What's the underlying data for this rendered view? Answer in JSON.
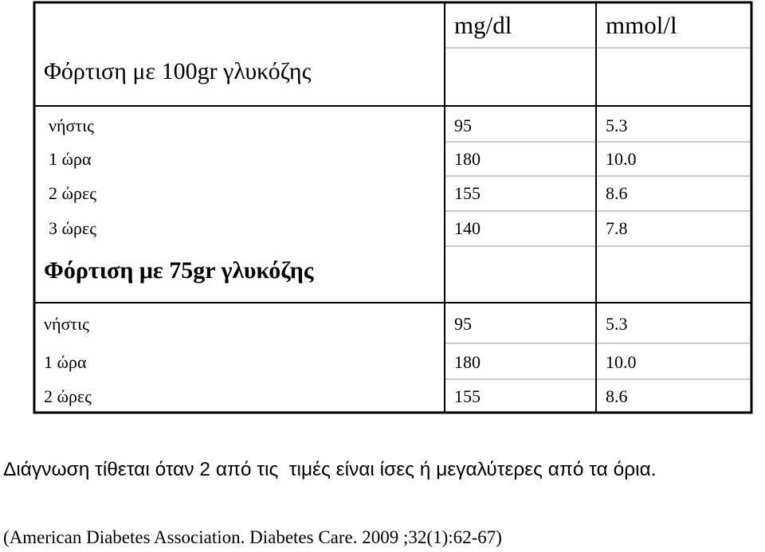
{
  "table": {
    "header": [
      "mg/dl",
      "mmol/l"
    ],
    "sections": [
      {
        "title": "Φόρτιση με 100gr γλυκόζης",
        "rows": [
          [
            "νήστις",
            "95",
            "5.3"
          ],
          [
            "1 ώρα",
            "180",
            "10.0"
          ],
          [
            "2 ώρες",
            "155",
            "8.6"
          ],
          [
            "3 ώρες",
            "140",
            "7.8"
          ]
        ]
      },
      {
        "title": "Φόρτιση με 75gr γλυκόζης",
        "rows": [
          [
            "νήστις",
            "95",
            "5.3"
          ],
          [
            "1 ώρα",
            "180",
            "10.0"
          ],
          [
            "2 ώρες",
            "155",
            "8.6"
          ]
        ]
      }
    ]
  },
  "note": "Διάγνωση τίθεται όταν 2 από τις  τιμές είναι ίσες ή μεγαλύτερες από τα όρια.",
  "reference": "(American Diabetes Association. Diabetes Care. 2009 ;32(1):62-67)"
}
